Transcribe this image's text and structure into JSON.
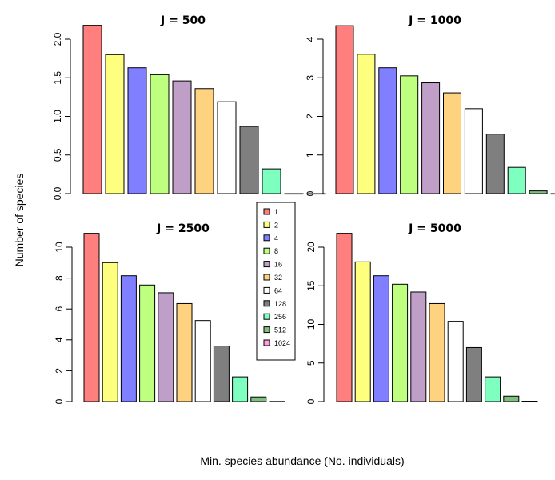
{
  "figure": {
    "xlabel": "Min. species abundance (No. individuals)",
    "ylabel": "Number of species"
  },
  "legend": {
    "entries": [
      "1",
      "2",
      "4",
      "8",
      "16",
      "32",
      "64",
      "128",
      "256",
      "512",
      "1024"
    ],
    "colors": [
      "#FF7F7F",
      "#FFFF7F",
      "#7F7FFF",
      "#BFFF7F",
      "#BF9FC7",
      "#FFD27F",
      "#FFFFFF",
      "#7F7F7F",
      "#7FFFBF",
      "#7FBF7F",
      "#FF9FE0"
    ]
  },
  "chart_data": [
    {
      "type": "bar",
      "title": "J = 500",
      "categories": [
        "1",
        "2",
        "4",
        "8",
        "16",
        "32",
        "64",
        "128",
        "256",
        "512",
        "1024"
      ],
      "values": [
        2.18,
        1.8,
        1.63,
        1.54,
        1.46,
        1.36,
        1.19,
        0.87,
        0.32,
        0,
        0
      ],
      "ylim": [
        0,
        2.0
      ],
      "yticks": [
        "0.0",
        "0.5",
        "1.0",
        "1.5",
        "2.0"
      ]
    },
    {
      "type": "bar",
      "title": "J = 1000",
      "categories": [
        "1",
        "2",
        "4",
        "8",
        "16",
        "32",
        "64",
        "128",
        "256",
        "512",
        "1024"
      ],
      "values": [
        4.35,
        3.61,
        3.26,
        3.05,
        2.87,
        2.61,
        2.2,
        1.54,
        0.68,
        0.07,
        0
      ],
      "ylim": [
        0,
        4
      ],
      "yticks": [
        "0",
        "1",
        "2",
        "3",
        "4"
      ]
    },
    {
      "type": "bar",
      "title": "J = 2500",
      "categories": [
        "1",
        "2",
        "4",
        "8",
        "16",
        "32",
        "64",
        "128",
        "256",
        "512",
        "1024"
      ],
      "values": [
        10.9,
        9.0,
        8.15,
        7.55,
        7.05,
        6.35,
        5.25,
        3.6,
        1.6,
        0.3,
        0.01
      ],
      "ylim": [
        0,
        10
      ],
      "yticks": [
        "0",
        "2",
        "4",
        "6",
        "8",
        "10"
      ]
    },
    {
      "type": "bar",
      "title": "J = 5000",
      "categories": [
        "1",
        "2",
        "4",
        "8",
        "16",
        "32",
        "64",
        "128",
        "256",
        "512",
        "1024"
      ],
      "values": [
        21.8,
        18.1,
        16.3,
        15.2,
        14.2,
        12.7,
        10.4,
        7.0,
        3.2,
        0.7,
        0.05
      ],
      "ylim": [
        0,
        20
      ],
      "yticks": [
        "0",
        "5",
        "10",
        "15",
        "20"
      ]
    }
  ]
}
